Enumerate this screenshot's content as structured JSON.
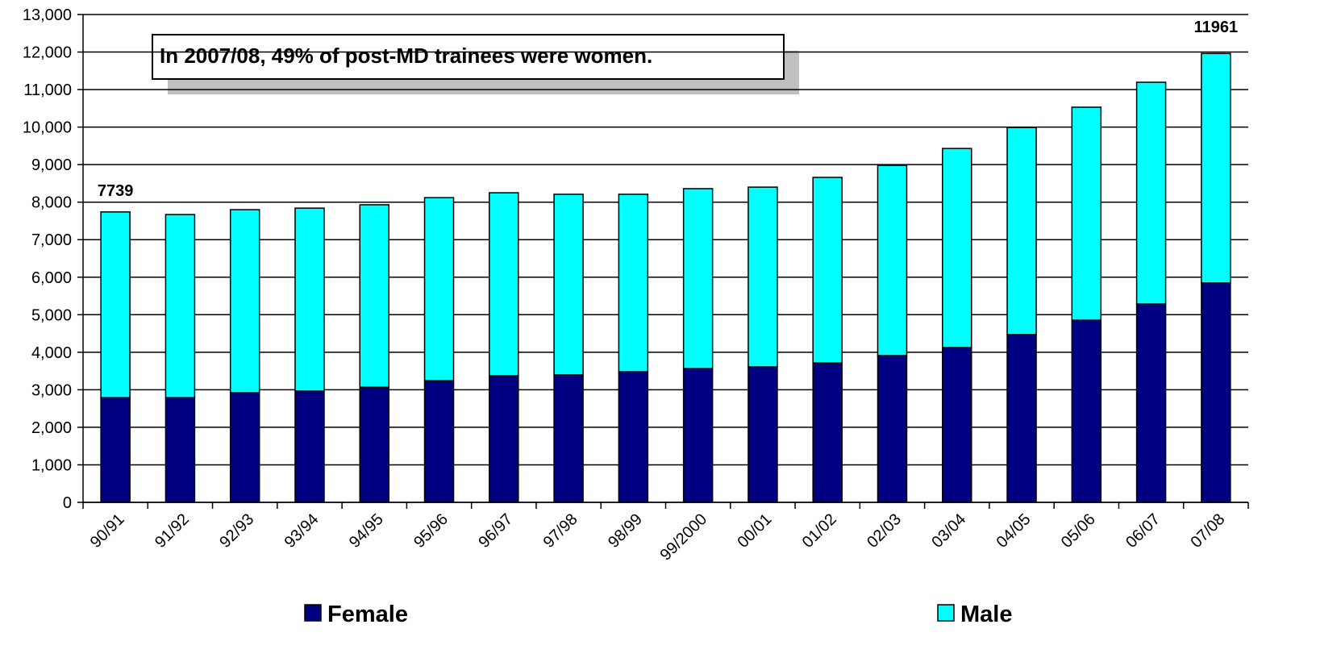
{
  "chart_data": {
    "type": "stacked_bar",
    "categories": [
      "90/91",
      "91/92",
      "92/93",
      "93/94",
      "94/95",
      "95/96",
      "96/97",
      "97/98",
      "98/99",
      "99/2000",
      "00/01",
      "01/02",
      "02/03",
      "03/04",
      "04/05",
      "05/06",
      "06/07",
      "07/08"
    ],
    "series": [
      {
        "name": "Female",
        "color": "#000080",
        "values": [
          2790,
          2790,
          2920,
          2965,
          3070,
          3245,
          3375,
          3395,
          3480,
          3565,
          3610,
          3715,
          3910,
          4125,
          4470,
          4855,
          5285,
          5845
        ]
      },
      {
        "name": "Male",
        "color": "#00ffff",
        "values": [
          4949,
          4880,
          4880,
          4875,
          4860,
          4875,
          4875,
          4815,
          4730,
          4795,
          4790,
          4945,
          5070,
          5305,
          5520,
          5675,
          5910,
          6116
        ]
      }
    ],
    "annotations": [
      "In 2007/08, 49% of post-MD trainees were women.",
      "7739",
      "11961"
    ],
    "ylim": [
      0,
      13000
    ],
    "yticks": [
      0,
      {
        "value": 1000,
        "label": "1,000"
      },
      {
        "value": 2000,
        "label": "2,000"
      },
      {
        "value": 3000,
        "label": "3,000"
      },
      {
        "value": 4000,
        "label": "4,000"
      },
      {
        "value": 5000,
        "label": "5,000"
      },
      {
        "value": 6000,
        "label": "6,000"
      },
      {
        "value": 7000,
        "label": "7,000"
      },
      {
        "value": 8000,
        "label": "8,000"
      },
      {
        "value": 9000,
        "label": "9,000"
      },
      {
        "value": 10000,
        "label": "10,000"
      },
      {
        "value": 11000,
        "label": "11,000"
      },
      {
        "value": 12000,
        "label": "12,000"
      },
      {
        "value": 13000,
        "label": "13,000"
      }
    ],
    "grid": true,
    "legend": "bottom"
  }
}
